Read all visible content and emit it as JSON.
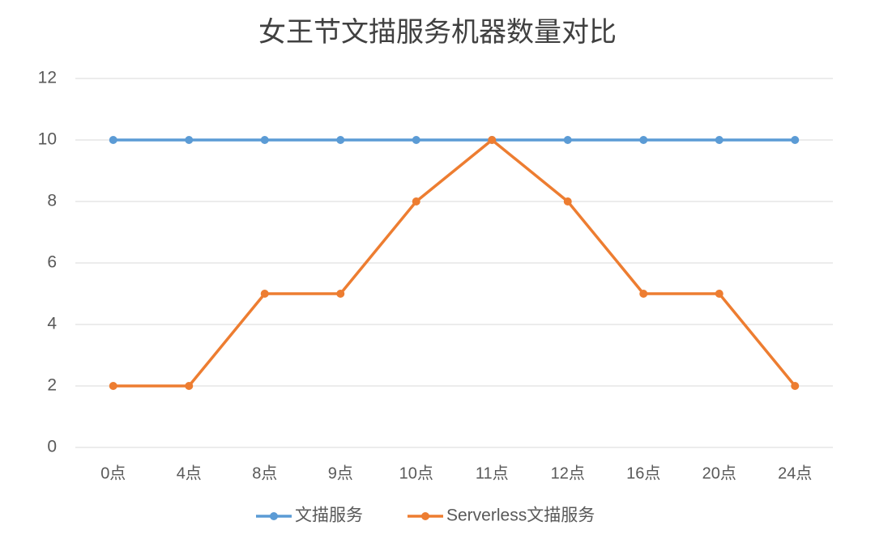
{
  "chart_data": {
    "type": "line",
    "title": "女王节文描服务机器数量对比",
    "categories": [
      "0点",
      "4点",
      "8点",
      "9点",
      "10点",
      "11点",
      "12点",
      "16点",
      "20点",
      "24点"
    ],
    "series": [
      {
        "name": "文描服务",
        "color": "#5b9bd5",
        "values": [
          10,
          10,
          10,
          10,
          10,
          10,
          10,
          10,
          10,
          10
        ]
      },
      {
        "name": "Serverless文描服务",
        "color": "#ed7d31",
        "values": [
          2,
          2,
          5,
          5,
          8,
          10,
          8,
          5,
          5,
          2
        ]
      }
    ],
    "ylim": [
      0,
      12
    ],
    "yticks": [
      0,
      2,
      4,
      6,
      8,
      10,
      12
    ],
    "grid": true,
    "legend": "bottom"
  }
}
